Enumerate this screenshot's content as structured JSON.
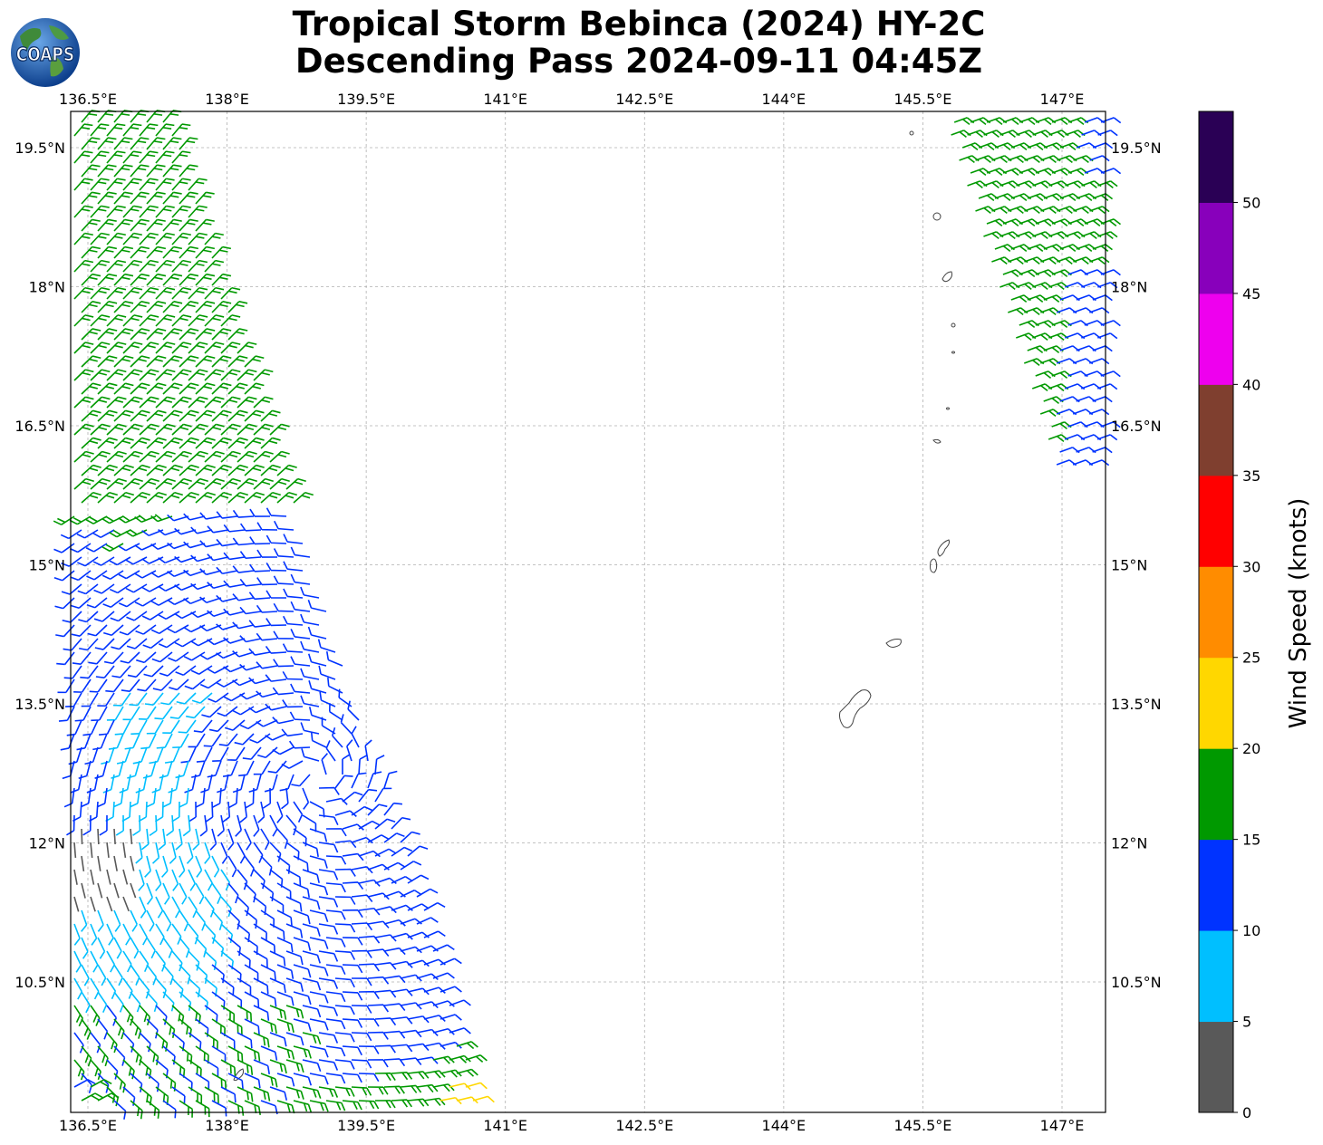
{
  "title": {
    "line1": "Tropical Storm Bebinca (2024) HY-2C",
    "line2": "Descending Pass 2024-09-11 04:45Z"
  },
  "logo": {
    "text": "COAPS",
    "icon": "globe-logo-icon"
  },
  "map": {
    "lon_labels": [
      "136.5°E",
      "138°E",
      "139.5°E",
      "141°E",
      "142.5°E",
      "144°E",
      "145.5°E",
      "147°E"
    ],
    "lat_labels": [
      "19.5°N",
      "18°N",
      "16.5°N",
      "15°N",
      "13.5°N",
      "12°N",
      "10.5°N"
    ],
    "lon_range": [
      136.2,
      147.5
    ],
    "lat_range": [
      9.0,
      19.9
    ],
    "grid": true,
    "coastline_color": "#444444"
  },
  "colorbar": {
    "label": "Wind Speed (knots)",
    "ticks": [
      "0",
      "5",
      "10",
      "15",
      "20",
      "25",
      "30",
      "35",
      "40",
      "45",
      "50"
    ],
    "colors": [
      "#595959",
      "#00bfff",
      "#0033ff",
      "#009900",
      "#ffd700",
      "#ff8c00",
      "#ff0000",
      "#7f3f2f",
      "#ee00ee",
      "#8800bb",
      "#2a0055"
    ]
  }
}
